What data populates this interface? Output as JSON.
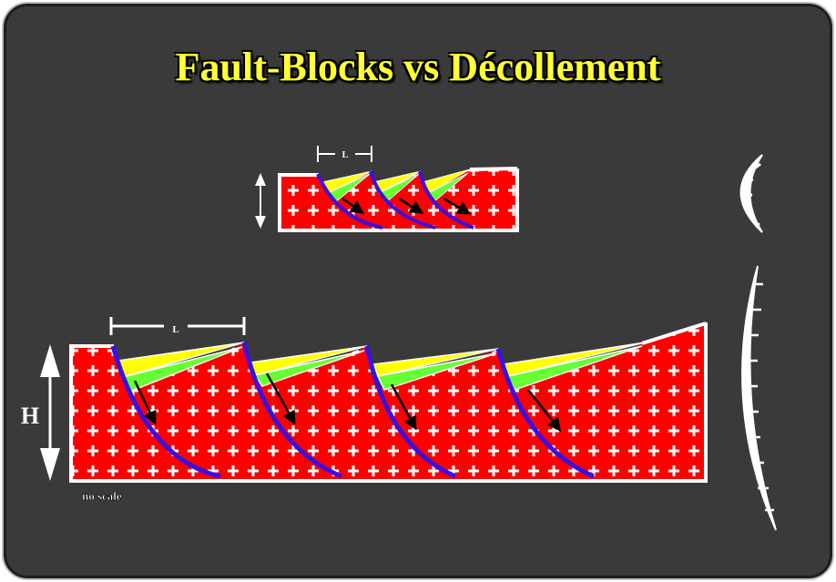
{
  "title": "Fault-Blocks vs Décollement",
  "labels": {
    "length_small": "L",
    "length_large": "L",
    "height": "H",
    "scale_note": "no scale"
  },
  "colors": {
    "background": "#3a3a3a",
    "title": "#ffff33",
    "basement": "#ff0000",
    "fault": "#3a10e0",
    "sediment_upper": "#ffff00",
    "sediment_lower": "#66ff33",
    "outline": "#ffffff"
  }
}
